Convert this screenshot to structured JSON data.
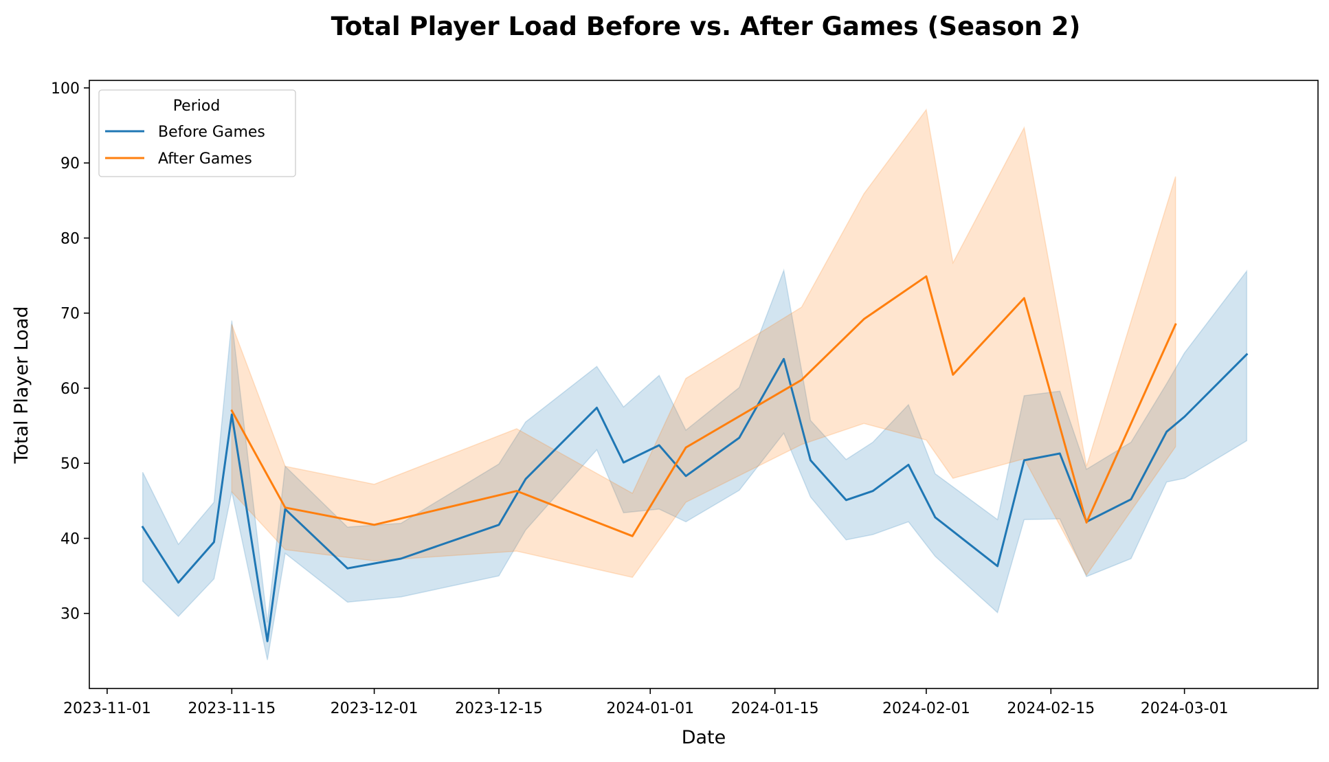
{
  "chart_data": {
    "type": "line",
    "title": "Total Player Load Before vs. After Games (Season 2)",
    "xlabel": "Date",
    "ylabel": "Total Player Load",
    "x_axis_type": "date",
    "xlim": [
      "2023-10-30",
      "2024-03-16"
    ],
    "ylim": [
      20,
      101
    ],
    "x_ticks": [
      "2023-11-01",
      "2023-11-15",
      "2023-12-01",
      "2023-12-15",
      "2024-01-01",
      "2024-01-15",
      "2024-02-01",
      "2024-02-15",
      "2024-03-01"
    ],
    "y_ticks": [
      30,
      40,
      50,
      60,
      70,
      80,
      90,
      100
    ],
    "grid": false,
    "legend": {
      "title": "Period",
      "placement": "top-left"
    },
    "series": [
      {
        "name": "Before Games",
        "color": "#1f77b4",
        "points": [
          {
            "x": "2023-11-05",
            "y": 41.5,
            "lo": 34.3,
            "hi": 48.8
          },
          {
            "x": "2023-11-09",
            "y": 34.1,
            "lo": 29.6,
            "hi": 39.2
          },
          {
            "x": "2023-11-13",
            "y": 39.5,
            "lo": 34.6,
            "hi": 44.8
          },
          {
            "x": "2023-11-15",
            "y": 56.5,
            "lo": 46.2,
            "hi": 69.0
          },
          {
            "x": "2023-11-19",
            "y": 26.3,
            "lo": 23.8,
            "hi": 28.8
          },
          {
            "x": "2023-11-21",
            "y": 43.9,
            "lo": 38.0,
            "hi": 49.6
          },
          {
            "x": "2023-11-28",
            "y": 36.0,
            "lo": 31.5,
            "hi": 41.5
          },
          {
            "x": "2023-12-04",
            "y": 37.3,
            "lo": 32.2,
            "hi": 42.0
          },
          {
            "x": "2023-12-15",
            "y": 41.8,
            "lo": 35.0,
            "hi": 49.9
          },
          {
            "x": "2023-12-18",
            "y": 47.9,
            "lo": 41.1,
            "hi": 55.5
          },
          {
            "x": "2023-12-26",
            "y": 57.4,
            "lo": 51.8,
            "hi": 62.9
          },
          {
            "x": "2023-12-29",
            "y": 50.1,
            "lo": 43.4,
            "hi": 57.5
          },
          {
            "x": "2024-01-02",
            "y": 52.4,
            "lo": 43.9,
            "hi": 61.7
          },
          {
            "x": "2024-01-05",
            "y": 48.3,
            "lo": 42.2,
            "hi": 54.4
          },
          {
            "x": "2024-01-11",
            "y": 53.4,
            "lo": 46.4,
            "hi": 60.1
          },
          {
            "x": "2024-01-16",
            "y": 63.9,
            "lo": 54.0,
            "hi": 75.7
          },
          {
            "x": "2024-01-19",
            "y": 50.4,
            "lo": 45.5,
            "hi": 55.7
          },
          {
            "x": "2024-01-23",
            "y": 45.1,
            "lo": 39.8,
            "hi": 50.5
          },
          {
            "x": "2024-01-26",
            "y": 46.3,
            "lo": 40.5,
            "hi": 52.8
          },
          {
            "x": "2024-01-30",
            "y": 49.8,
            "lo": 42.2,
            "hi": 57.8
          },
          {
            "x": "2024-02-02",
            "y": 42.8,
            "lo": 37.6,
            "hi": 48.6
          },
          {
            "x": "2024-02-09",
            "y": 36.3,
            "lo": 30.1,
            "hi": 42.5
          },
          {
            "x": "2024-02-12",
            "y": 50.4,
            "lo": 42.5,
            "hi": 59.0
          },
          {
            "x": "2024-02-16",
            "y": 51.3,
            "lo": 42.6,
            "hi": 59.6
          },
          {
            "x": "2024-02-19",
            "y": 42.2,
            "lo": 34.9,
            "hi": 49.2
          },
          {
            "x": "2024-02-24",
            "y": 45.2,
            "lo": 37.3,
            "hi": 52.8
          },
          {
            "x": "2024-02-28",
            "y": 54.2,
            "lo": 47.5,
            "hi": 60.6
          },
          {
            "x": "2024-03-01",
            "y": 56.2,
            "lo": 48.0,
            "hi": 64.7
          },
          {
            "x": "2024-03-08",
            "y": 64.5,
            "lo": 53.0,
            "hi": 75.6
          }
        ]
      },
      {
        "name": "After Games",
        "color": "#ff7f0e",
        "points": [
          {
            "x": "2023-11-15",
            "y": 57.0,
            "lo": 46.2,
            "hi": 68.5
          },
          {
            "x": "2023-11-21",
            "y": 44.1,
            "lo": 38.5,
            "hi": 49.6
          },
          {
            "x": "2023-12-01",
            "y": 41.8,
            "lo": 37.0,
            "hi": 47.2
          },
          {
            "x": "2023-12-17",
            "y": 46.3,
            "lo": 38.3,
            "hi": 54.6
          },
          {
            "x": "2023-12-30",
            "y": 40.3,
            "lo": 34.8,
            "hi": 46.0
          },
          {
            "x": "2024-01-05",
            "y": 52.1,
            "lo": 44.8,
            "hi": 61.3
          },
          {
            "x": "2024-01-18",
            "y": 61.1,
            "lo": 52.5,
            "hi": 70.8
          },
          {
            "x": "2024-01-25",
            "y": 69.2,
            "lo": 55.3,
            "hi": 85.9
          },
          {
            "x": "2024-02-01",
            "y": 74.9,
            "lo": 53.1,
            "hi": 97.1
          },
          {
            "x": "2024-02-04",
            "y": 61.8,
            "lo": 48.0,
            "hi": 76.7
          },
          {
            "x": "2024-02-12",
            "y": 72.0,
            "lo": 50.6,
            "hi": 94.7
          },
          {
            "x": "2024-02-19",
            "y": 42.1,
            "lo": 35.1,
            "hi": 49.6
          },
          {
            "x": "2024-02-29",
            "y": 68.5,
            "lo": 52.2,
            "hi": 88.2
          }
        ]
      }
    ]
  }
}
